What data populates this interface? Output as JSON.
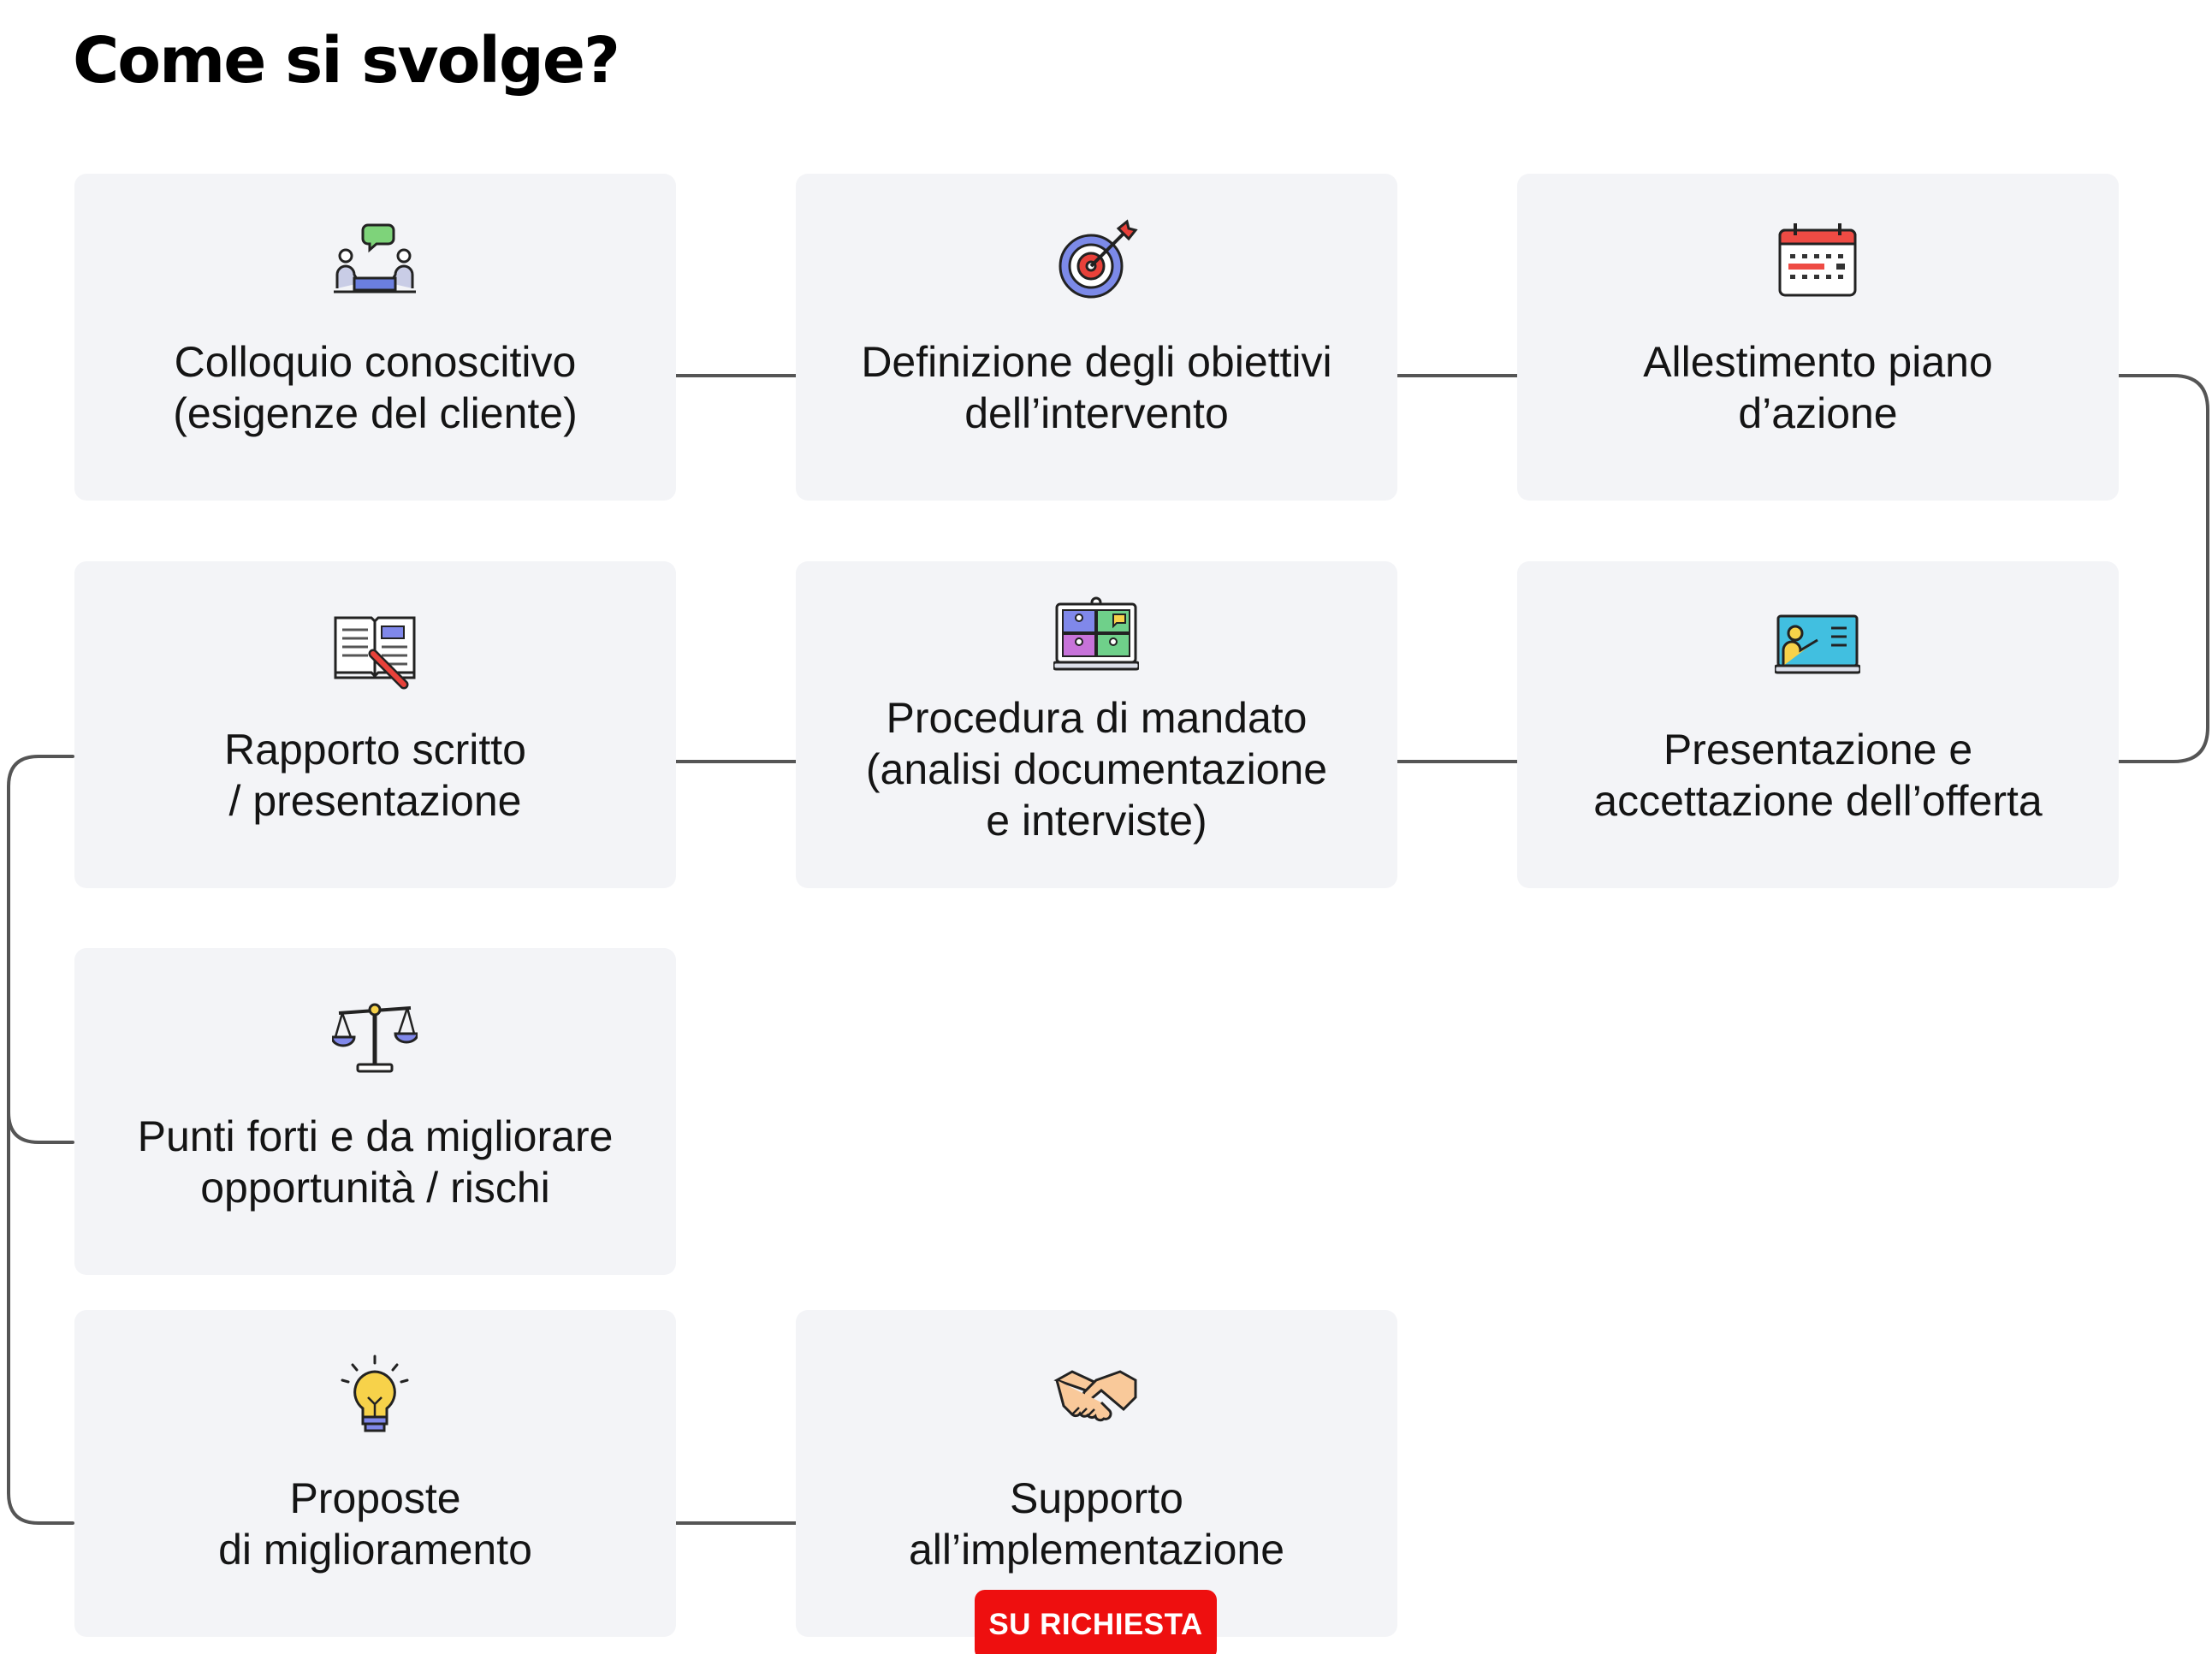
{
  "title": "Come si svolge?",
  "steps": [
    {
      "id": "colloquio",
      "icon": "conversation-icon",
      "lines": [
        "Colloquio conoscitivo",
        "(esigenze del cliente)"
      ]
    },
    {
      "id": "obiettivi",
      "icon": "target-icon",
      "lines": [
        "Definizione degli obiettivi",
        "dell’intervento"
      ]
    },
    {
      "id": "piano",
      "icon": "calendar-icon",
      "lines": [
        "Allestimento piano",
        "d’azione"
      ]
    },
    {
      "id": "offerta",
      "icon": "presentation-board-icon",
      "lines": [
        "Presentazione e",
        "accettazione dell’offerta"
      ]
    },
    {
      "id": "mandato",
      "icon": "video-conference-icon",
      "lines": [
        "Procedura di mandato",
        "(analisi documentazione",
        "e interviste)"
      ]
    },
    {
      "id": "rapporto",
      "icon": "book-pencil-icon",
      "lines": [
        "Rapporto scritto",
        "/ presentazione"
      ]
    },
    {
      "id": "punti",
      "icon": "scales-icon",
      "lines": [
        "Punti forti e da migliorare",
        "opportunità / rischi"
      ]
    },
    {
      "id": "proposte",
      "icon": "lightbulb-icon",
      "lines": [
        "Proposte",
        "di miglioramento"
      ]
    },
    {
      "id": "supporto",
      "icon": "handshake-icon",
      "lines": [
        "Supporto",
        "all’implementazione"
      ],
      "badge": "SU RICHIESTA"
    }
  ],
  "colors": {
    "card_background": "#f3f4f7",
    "connector": "#555555",
    "badge": "#ee0f0f",
    "badge_text": "#ffffff"
  }
}
